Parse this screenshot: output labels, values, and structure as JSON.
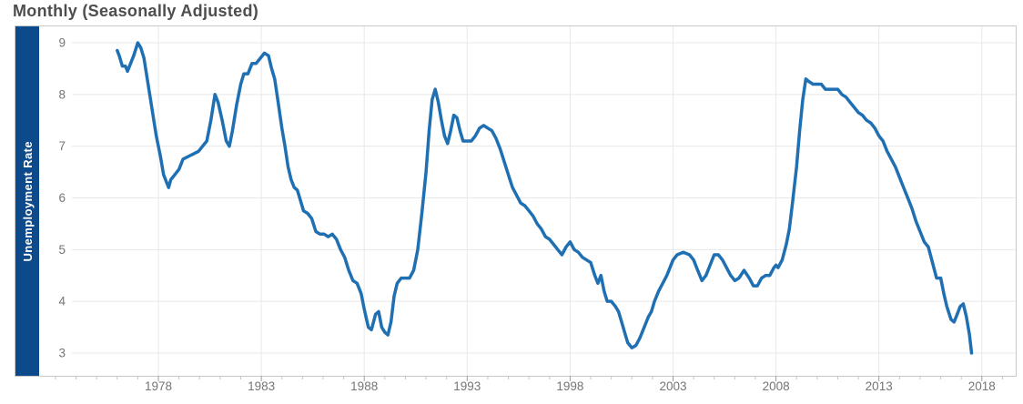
{
  "title": {
    "text": "Monthly (Seasonally Adjusted)"
  },
  "y_axis_band": {
    "label": "Unemployment Rate"
  },
  "colors": {
    "line": "#1f6fb3",
    "band_background": "#0d4a8c",
    "band_text": "#ffffff",
    "grid": "#e8e8e8",
    "border": "#c9c9c9",
    "minor_tick": "#c4c4c4",
    "major_tick": "#9d9d9d",
    "axis_text": "#757575",
    "title_text": "#4d4d4d"
  },
  "chart_data": {
    "type": "line",
    "title": "Monthly (Seasonally Adjusted)",
    "ylabel": "Unemployment Rate",
    "series_name": "Unemployment Rate",
    "legend": "none",
    "grid": true,
    "x_ticks": [
      1978,
      1983,
      1988,
      1993,
      1998,
      2003,
      2008,
      2013,
      2018
    ],
    "minor_x_tick_interval_years": 1,
    "y_ticks": [
      9,
      8,
      7,
      6,
      5,
      4,
      3
    ],
    "ylim": [
      3,
      9
    ],
    "xlim": [
      1976,
      2017.6
    ],
    "x": [
      1976,
      1976.1,
      1976.25,
      1976.4,
      1976.5,
      1976.65,
      1976.8,
      1977,
      1977.15,
      1977.3,
      1977.5,
      1977.7,
      1977.9,
      1978.1,
      1978.25,
      1978.4,
      1978.5,
      1978.6,
      1978.8,
      1979,
      1979.2,
      1979.45,
      1979.7,
      1979.95,
      1980.15,
      1980.35,
      1980.55,
      1980.75,
      1980.9,
      1981.1,
      1981.3,
      1981.45,
      1981.6,
      1981.8,
      1982,
      1982.15,
      1982.35,
      1982.55,
      1982.75,
      1982.95,
      1983.15,
      1983.35,
      1983.5,
      1983.65,
      1983.8,
      1984,
      1984.15,
      1984.3,
      1984.45,
      1984.6,
      1984.75,
      1984.9,
      1985.05,
      1985.25,
      1985.45,
      1985.65,
      1985.85,
      1986.05,
      1986.25,
      1986.45,
      1986.65,
      1986.85,
      1987.05,
      1987.25,
      1987.45,
      1987.65,
      1987.85,
      1988,
      1988.2,
      1988.35,
      1988.55,
      1988.7,
      1988.85,
      1989,
      1989.15,
      1989.3,
      1989.45,
      1989.6,
      1989.8,
      1990,
      1990.2,
      1990.4,
      1990.6,
      1990.8,
      1991,
      1991.15,
      1991.3,
      1991.45,
      1991.6,
      1991.75,
      1991.9,
      1992.05,
      1992.2,
      1992.35,
      1992.5,
      1992.65,
      1992.8,
      1993,
      1993.2,
      1993.4,
      1993.6,
      1993.8,
      1994,
      1994.2,
      1994.4,
      1994.6,
      1994.8,
      1995,
      1995.2,
      1995.4,
      1995.6,
      1995.8,
      1996,
      1996.2,
      1996.4,
      1996.6,
      1996.8,
      1997,
      1997.2,
      1997.4,
      1997.6,
      1997.8,
      1998,
      1998.2,
      1998.4,
      1998.6,
      1998.8,
      1999,
      1999.2,
      1999.35,
      1999.5,
      1999.65,
      1999.8,
      2000,
      2000.2,
      2000.35,
      2000.5,
      2000.65,
      2000.8,
      2001,
      2001.2,
      2001.4,
      2001.6,
      2001.8,
      2001.95,
      2002.1,
      2002.3,
      2002.5,
      2002.7,
      2002.85,
      2003,
      2003.2,
      2003.5,
      2003.8,
      2004,
      2004.2,
      2004.4,
      2004.6,
      2004.8,
      2005,
      2005.2,
      2005.4,
      2005.6,
      2005.8,
      2006,
      2006.2,
      2006.45,
      2006.7,
      2006.9,
      2007.1,
      2007.3,
      2007.5,
      2007.7,
      2007.9,
      2008,
      2008.1,
      2008.3,
      2008.5,
      2008.65,
      2008.8,
      2009,
      2009.15,
      2009.3,
      2009.45,
      2009.6,
      2009.8,
      2010,
      2010.2,
      2010.4,
      2010.6,
      2010.8,
      2011,
      2011.2,
      2011.4,
      2011.6,
      2011.8,
      2012,
      2012.2,
      2012.4,
      2012.6,
      2012.8,
      2013,
      2013.2,
      2013.4,
      2013.6,
      2013.8,
      2014,
      2014.2,
      2014.4,
      2014.6,
      2014.8,
      2015,
      2015.2,
      2015.4,
      2015.6,
      2015.8,
      2016,
      2016.15,
      2016.3,
      2016.5,
      2016.65,
      2016.8,
      2016.95,
      2017.1,
      2017.25,
      2017.4,
      2017.5
    ],
    "y": [
      8.85,
      8.75,
      8.55,
      8.55,
      8.45,
      8.6,
      8.75,
      9,
      8.9,
      8.7,
      8.2,
      7.7,
      7.2,
      6.8,
      6.45,
      6.3,
      6.2,
      6.35,
      6.45,
      6.55,
      6.75,
      6.8,
      6.85,
      6.9,
      7,
      7.1,
      7.5,
      8,
      7.85,
      7.5,
      7.1,
      7,
      7.3,
      7.8,
      8.2,
      8.4,
      8.4,
      8.6,
      8.6,
      8.7,
      8.8,
      8.75,
      8.5,
      8.3,
      7.9,
      7.35,
      7,
      6.6,
      6.35,
      6.2,
      6.15,
      5.95,
      5.75,
      5.7,
      5.6,
      5.35,
      5.3,
      5.3,
      5.25,
      5.3,
      5.2,
      5,
      4.85,
      4.6,
      4.4,
      4.35,
      4.15,
      3.85,
      3.5,
      3.45,
      3.75,
      3.8,
      3.5,
      3.4,
      3.35,
      3.6,
      4.1,
      4.35,
      4.45,
      4.45,
      4.45,
      4.6,
      5,
      5.7,
      6.5,
      7.3,
      7.9,
      8.1,
      7.85,
      7.5,
      7.2,
      7.05,
      7.3,
      7.6,
      7.55,
      7.3,
      7.1,
      7.1,
      7.1,
      7.2,
      7.35,
      7.4,
      7.35,
      7.3,
      7.15,
      6.95,
      6.7,
      6.45,
      6.2,
      6.05,
      5.9,
      5.85,
      5.75,
      5.65,
      5.5,
      5.4,
      5.25,
      5.2,
      5.1,
      5,
      4.9,
      5.05,
      5.15,
      5,
      4.95,
      4.85,
      4.8,
      4.75,
      4.5,
      4.35,
      4.5,
      4.2,
      4,
      4,
      3.9,
      3.8,
      3.6,
      3.4,
      3.2,
      3.1,
      3.15,
      3.3,
      3.5,
      3.7,
      3.8,
      4,
      4.2,
      4.35,
      4.5,
      4.65,
      4.8,
      4.9,
      4.95,
      4.9,
      4.8,
      4.6,
      4.4,
      4.5,
      4.7,
      4.9,
      4.9,
      4.8,
      4.65,
      4.5,
      4.4,
      4.45,
      4.6,
      4.45,
      4.3,
      4.3,
      4.45,
      4.5,
      4.5,
      4.65,
      4.7,
      4.65,
      4.8,
      5.1,
      5.4,
      5.9,
      6.6,
      7.3,
      7.9,
      8.3,
      8.25,
      8.2,
      8.2,
      8.2,
      8.1,
      8.1,
      8.1,
      8.1,
      8,
      7.95,
      7.85,
      7.75,
      7.65,
      7.6,
      7.5,
      7.45,
      7.35,
      7.2,
      7.1,
      6.9,
      6.75,
      6.6,
      6.4,
      6.2,
      6,
      5.8,
      5.55,
      5.35,
      5.15,
      5.05,
      4.75,
      4.45,
      4.45,
      4.15,
      3.9,
      3.65,
      3.6,
      3.75,
      3.9,
      3.95,
      3.7,
      3.35,
      3
    ]
  }
}
